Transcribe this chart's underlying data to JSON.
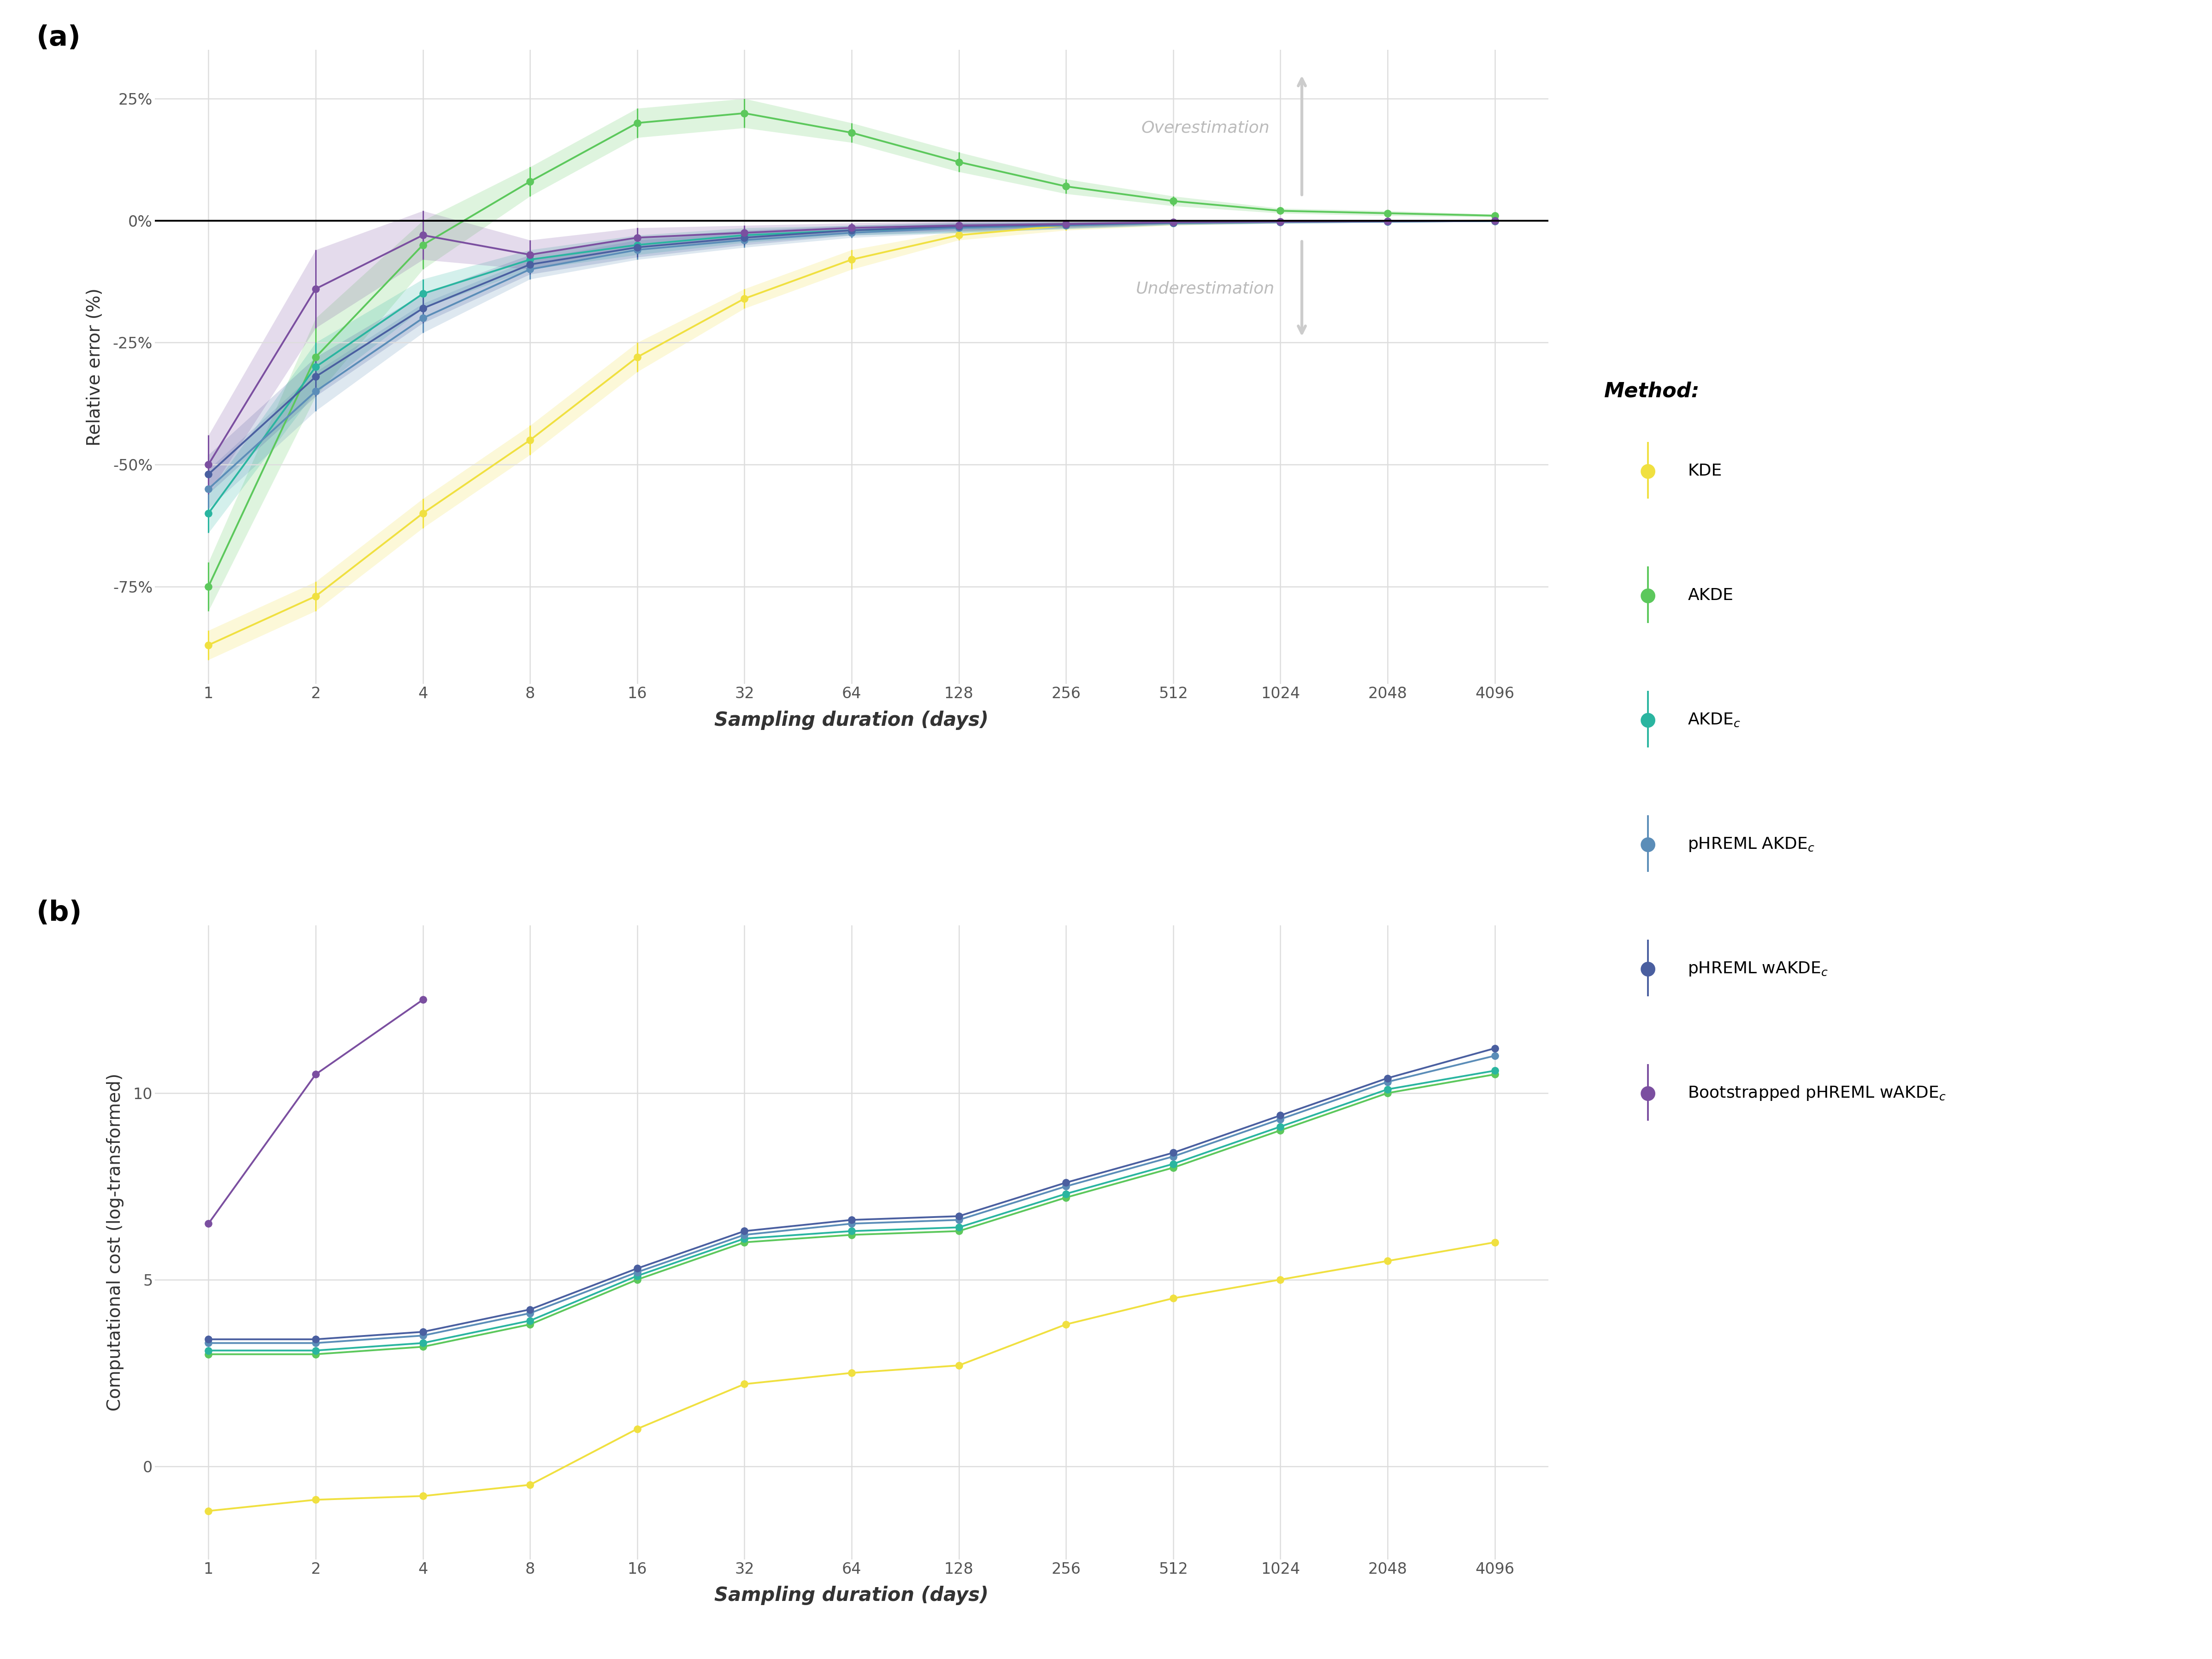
{
  "x_days": [
    1,
    2,
    4,
    8,
    16,
    32,
    64,
    128,
    256,
    512,
    1024,
    2048,
    4096
  ],
  "x_labels": [
    "1",
    "2",
    "4",
    "8",
    "16",
    "32",
    "64",
    "128",
    "256",
    "512",
    "1024",
    "2048",
    "4096"
  ],
  "panel_a": {
    "ylabel": "Relative error (%)",
    "ylim": [
      -95,
      35
    ],
    "yticks": [
      -75,
      -50,
      -25,
      0,
      25
    ],
    "yticklabels": [
      "-75%",
      "-50%",
      "-25%",
      "0%",
      "25%"
    ],
    "KDE": {
      "values": [
        -87,
        -77,
        -60,
        -45,
        -28,
        -16,
        -8,
        -3,
        -1,
        -0.5,
        -0.2,
        -0.1,
        0
      ],
      "yerr_lo": [
        3,
        3,
        3,
        3,
        3,
        2,
        2,
        1,
        1,
        0.5,
        0.3,
        0.2,
        0.1
      ],
      "yerr_hi": [
        3,
        3,
        3,
        3,
        3,
        2,
        2,
        1,
        1,
        0.5,
        0.3,
        0.2,
        0.1
      ]
    },
    "AKDE": {
      "values": [
        -75,
        -28,
        -5,
        8,
        20,
        22,
        18,
        12,
        7,
        4,
        2,
        1.5,
        1
      ],
      "yerr_lo": [
        5,
        8,
        5,
        3,
        3,
        3,
        2,
        2,
        1.5,
        1,
        0.5,
        0.5,
        0.3
      ],
      "yerr_hi": [
        5,
        8,
        5,
        3,
        3,
        3,
        2,
        2,
        1.5,
        1,
        0.5,
        0.5,
        0.3
      ]
    },
    "AKDEc": {
      "values": [
        -60,
        -30,
        -15,
        -8,
        -5,
        -3,
        -2,
        -1.5,
        -1,
        -0.5,
        -0.3,
        -0.2,
        -0.1
      ],
      "yerr_lo": [
        4,
        5,
        3,
        2,
        2,
        1.5,
        1,
        1,
        0.7,
        0.4,
        0.3,
        0.2,
        0.1
      ],
      "yerr_hi": [
        4,
        5,
        3,
        2,
        2,
        1.5,
        1,
        1,
        0.7,
        0.4,
        0.3,
        0.2,
        0.1
      ]
    },
    "pHREML_AKDEc": {
      "values": [
        -55,
        -35,
        -20,
        -10,
        -6,
        -4,
        -2.5,
        -1.5,
        -1,
        -0.5,
        -0.3,
        -0.2,
        -0.1
      ],
      "yerr_lo": [
        4,
        4,
        3,
        2,
        2,
        1.5,
        1,
        1,
        0.7,
        0.4,
        0.3,
        0.2,
        0.1
      ],
      "yerr_hi": [
        4,
        4,
        3,
        2,
        2,
        1.5,
        1,
        1,
        0.7,
        0.4,
        0.3,
        0.2,
        0.1
      ]
    },
    "pHREML_wAKDEc": {
      "values": [
        -52,
        -32,
        -18,
        -9,
        -5.5,
        -3.5,
        -2,
        -1.2,
        -0.8,
        -0.4,
        -0.2,
        -0.15,
        -0.05
      ],
      "yerr_lo": [
        4,
        4,
        3,
        2,
        2,
        1.5,
        1,
        1,
        0.7,
        0.4,
        0.3,
        0.2,
        0.1
      ],
      "yerr_hi": [
        4,
        4,
        3,
        2,
        2,
        1.5,
        1,
        1,
        0.7,
        0.4,
        0.3,
        0.2,
        0.1
      ]
    },
    "Boot_pHREML_wAKDEc": {
      "values": [
        -50,
        -14,
        -3,
        -7,
        -3.5,
        -2.5,
        -1.5,
        -1,
        -0.7,
        -0.3,
        -0.2,
        -0.1,
        -0.05
      ],
      "yerr_lo": [
        6,
        8,
        5,
        3,
        2,
        1.5,
        1,
        1,
        0.7,
        0.4,
        0.3,
        0.2,
        0.1
      ],
      "yerr_hi": [
        6,
        8,
        5,
        3,
        2,
        1.5,
        1,
        1,
        0.7,
        0.4,
        0.3,
        0.2,
        0.1
      ]
    }
  },
  "panel_b": {
    "ylabel": "Computational cost (log-transformed)",
    "ylim": [
      -2.5,
      14.5
    ],
    "yticks": [
      0,
      5,
      10
    ],
    "yticklabels": [
      "0",
      "5",
      "10"
    ],
    "KDE": {
      "values": [
        -1.2,
        -0.9,
        -0.8,
        -0.5,
        1.0,
        2.2,
        2.5,
        2.7,
        3.8,
        4.5,
        5.0,
        5.5,
        6.0
      ]
    },
    "AKDE": {
      "values": [
        3.0,
        3.0,
        3.2,
        3.8,
        5.0,
        6.0,
        6.2,
        6.3,
        7.2,
        8.0,
        9.0,
        10.0,
        10.5
      ]
    },
    "AKDEc": {
      "values": [
        3.1,
        3.1,
        3.3,
        3.9,
        5.1,
        6.1,
        6.3,
        6.4,
        7.3,
        8.1,
        9.1,
        10.1,
        10.6
      ]
    },
    "pHREML_AKDEc": {
      "values": [
        3.3,
        3.3,
        3.5,
        4.1,
        5.2,
        6.2,
        6.5,
        6.6,
        7.5,
        8.3,
        9.3,
        10.3,
        11.0
      ]
    },
    "pHREML_wAKDEc": {
      "values": [
        3.4,
        3.4,
        3.6,
        4.2,
        5.3,
        6.3,
        6.6,
        6.7,
        7.6,
        8.4,
        9.4,
        10.4,
        11.2
      ]
    },
    "Boot_pHREML_wAKDEc": {
      "values": [
        6.5,
        10.5,
        12.5,
        null,
        null,
        null,
        null,
        null,
        null,
        null,
        null,
        null,
        null
      ]
    }
  },
  "colors": {
    "KDE": "#f0e040",
    "AKDE": "#5cc85c",
    "AKDEc": "#2ab5a0",
    "pHREML_AKDEc": "#5b8db8",
    "pHREML_wAKDEc": "#4a5fa0",
    "Boot_pHREML_wAKDEc": "#7b4fa0",
    "grid": "#dddddd",
    "background": "#ffffff",
    "zeroline": "#000000"
  }
}
